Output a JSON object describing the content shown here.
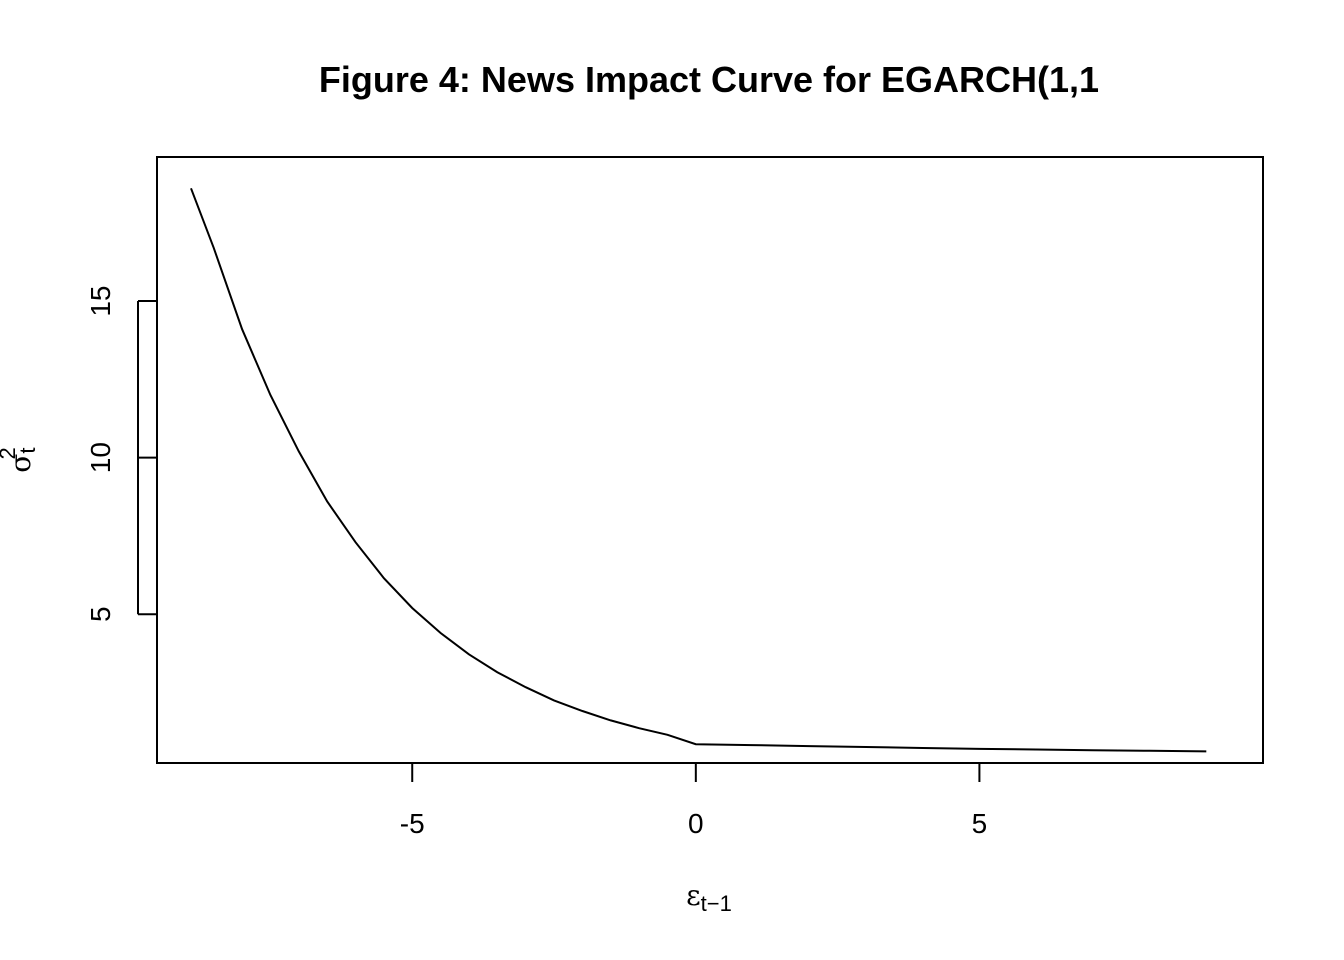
{
  "chart_data": {
    "type": "line",
    "title": "Figure 4: News Impact Curve for EGARCH(1,1",
    "xlabel": {
      "symbol": "ε",
      "subscript": "t−1"
    },
    "ylabel": {
      "symbol": "σ",
      "subscript": "t",
      "superscript": "2"
    },
    "xlim": [
      -9.5,
      10
    ],
    "ylim": [
      0.25,
      19.6
    ],
    "x_ticks": [
      -5,
      0,
      5
    ],
    "x_tick_labels": [
      "-5",
      "0",
      "5"
    ],
    "y_ticks": [
      5,
      10,
      15
    ],
    "y_tick_labels": [
      "5",
      "10",
      "15"
    ],
    "grid": false,
    "line_color": "#000000",
    "series": [
      {
        "x": [
          -8.9,
          -8.5,
          -8.0,
          -7.5,
          -7.0,
          -6.5,
          -6.0,
          -5.5,
          -5.0,
          -4.5,
          -4.0,
          -3.5,
          -3.0,
          -2.5,
          -2.0,
          -1.5,
          -1.0,
          -0.5,
          0.0,
          1.0,
          2.0,
          3.0,
          4.0,
          5.0,
          6.0,
          7.0,
          8.0,
          9.0
        ],
        "y": [
          18.6,
          16.7,
          14.1,
          12.0,
          10.2,
          8.6,
          7.3,
          6.15,
          5.2,
          4.4,
          3.72,
          3.15,
          2.67,
          2.25,
          1.91,
          1.61,
          1.36,
          1.15,
          0.85,
          0.82,
          0.79,
          0.76,
          0.73,
          0.7,
          0.68,
          0.66,
          0.64,
          0.62
        ]
      }
    ]
  }
}
